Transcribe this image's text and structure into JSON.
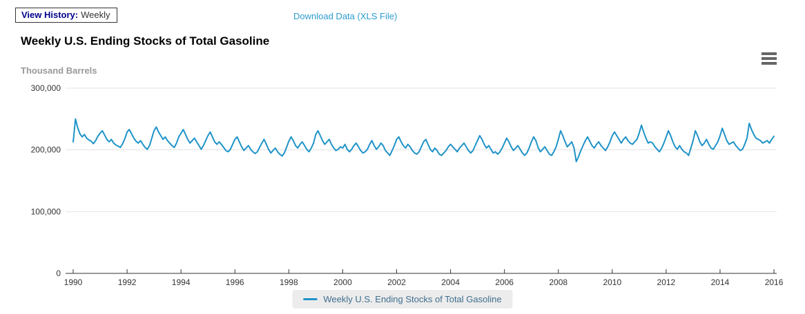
{
  "toolbar": {
    "view_history_label": "View History:",
    "view_history_value": "Weekly",
    "download_link": "Download Data (XLS File)"
  },
  "chart": {
    "title": "Weekly U.S. Ending Stocks of Total Gasoline",
    "y_axis_unit": "Thousand Barrels",
    "legend_label": "Weekly U.S. Ending Stocks of Total Gasoline",
    "menu_icon": "hamburger-menu-icon"
  },
  "colors": {
    "line": "#1e93c8",
    "link": "#2b9cd0",
    "legend_text": "#3e6e8e",
    "unit_text": "#999999",
    "axis_text": "#333333",
    "grid": "#e3e3e3",
    "axis_line": "#333333",
    "view_history_label": "#00008b"
  },
  "chart_data": {
    "type": "line",
    "title": "Weekly U.S. Ending Stocks of Total Gasoline",
    "xlabel": "",
    "ylabel": "Thousand Barrels",
    "ylim": [
      0,
      300000
    ],
    "xlim": [
      1990,
      2016
    ],
    "y_ticks": [
      0,
      100000,
      200000,
      300000
    ],
    "x_ticks": [
      1990,
      1992,
      1994,
      1996,
      1998,
      2000,
      2002,
      2004,
      2006,
      2008,
      2010,
      2012,
      2014,
      2016
    ],
    "grid": true,
    "legend_position": "bottom",
    "resolution_note": "values estimated from plot at monthly resolution",
    "x_start": 1990.0,
    "x_step_years": 0.083333,
    "series": [
      {
        "name": "Weekly U.S. Ending Stocks of Total Gasoline",
        "values": [
          213000,
          250000,
          236000,
          226000,
          221000,
          225000,
          219000,
          216000,
          214000,
          210000,
          215000,
          222000,
          227000,
          231000,
          224000,
          217000,
          213000,
          217000,
          211000,
          208000,
          206000,
          204000,
          210000,
          218000,
          229000,
          233000,
          226000,
          219000,
          214000,
          211000,
          215000,
          209000,
          204000,
          201000,
          207000,
          219000,
          231000,
          237000,
          229000,
          223000,
          217000,
          221000,
          215000,
          211000,
          207000,
          204000,
          211000,
          221000,
          227000,
          233000,
          225000,
          217000,
          211000,
          215000,
          219000,
          213000,
          207000,
          201000,
          207000,
          215000,
          223000,
          229000,
          221000,
          213000,
          209000,
          213000,
          209000,
          204000,
          199000,
          197000,
          201000,
          209000,
          217000,
          221000,
          213000,
          205000,
          199000,
          203000,
          207000,
          201000,
          197000,
          194000,
          197000,
          204000,
          211000,
          217000,
          209000,
          201000,
          195000,
          199000,
          203000,
          197000,
          193000,
          190000,
          195000,
          204000,
          214000,
          221000,
          215000,
          207000,
          203000,
          209000,
          213000,
          207000,
          201000,
          197000,
          203000,
          211000,
          225000,
          231000,
          223000,
          215000,
          209000,
          213000,
          217000,
          209000,
          203000,
          199000,
          201000,
          205000,
          203000,
          209000,
          201000,
          197000,
          201000,
          207000,
          211000,
          205000,
          199000,
          195000,
          197000,
          201000,
          209000,
          215000,
          207000,
          201000,
          205000,
          211000,
          207000,
          199000,
          195000,
          191000,
          199000,
          207000,
          217000,
          221000,
          213000,
          207000,
          203000,
          209000,
          205000,
          199000,
          195000,
          193000,
          197000,
          205000,
          213000,
          217000,
          209000,
          201000,
          197000,
          203000,
          199000,
          193000,
          191000,
          195000,
          199000,
          205000,
          209000,
          205000,
          201000,
          197000,
          203000,
          207000,
          211000,
          205000,
          199000,
          195000,
          199000,
          207000,
          215000,
          223000,
          217000,
          209000,
          203000,
          207000,
          201000,
          195000,
          197000,
          193000,
          197000,
          203000,
          211000,
          219000,
          213000,
          205000,
          199000,
          203000,
          207000,
          201000,
          195000,
          191000,
          195000,
          203000,
          213000,
          221000,
          215000,
          204000,
          197000,
          201000,
          205000,
          199000,
          193000,
          191000,
          197000,
          205000,
          217000,
          231000,
          223000,
          213000,
          205000,
          209000,
          213000,
          203000,
          181000,
          189000,
          199000,
          207000,
          215000,
          221000,
          214000,
          207000,
          203000,
          209000,
          213000,
          207000,
          203000,
          199000,
          205000,
          213000,
          223000,
          229000,
          223000,
          217000,
          211000,
          217000,
          221000,
          215000,
          211000,
          209000,
          213000,
          217000,
          227000,
          240000,
          229000,
          219000,
          211000,
          213000,
          211000,
          205000,
          201000,
          197000,
          203000,
          211000,
          221000,
          231000,
          223000,
          213000,
          205000,
          201000,
          207000,
          201000,
          197000,
          195000,
          191000,
          203000,
          215000,
          231000,
          223000,
          213000,
          207000,
          211000,
          217000,
          209000,
          203000,
          201000,
          207000,
          213000,
          223000,
          235000,
          225000,
          215000,
          209000,
          211000,
          213000,
          207000,
          203000,
          199000,
          201000,
          209000,
          219000,
          243000,
          233000,
          225000,
          219000,
          217000,
          215000,
          211000,
          213000,
          215000,
          211000,
          217000,
          222000
        ]
      }
    ]
  }
}
